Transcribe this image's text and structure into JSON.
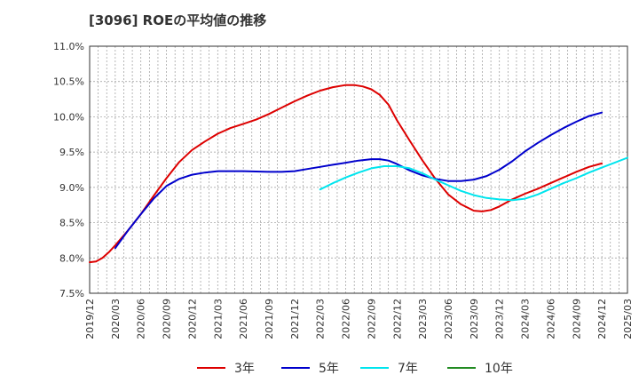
{
  "chart_data": {
    "type": "line",
    "title": "[3096]  ROEの平均値の推移",
    "xlabel": "",
    "ylabel": "",
    "ylim": [
      7.5,
      11.0
    ],
    "y_ticks": [
      "7.5%",
      "8.0%",
      "8.5%",
      "9.0%",
      "9.5%",
      "10.0%",
      "10.5%",
      "11.0%"
    ],
    "y_tick_values": [
      7.5,
      8.0,
      8.5,
      9.0,
      9.5,
      10.0,
      10.5,
      11.0
    ],
    "categories": [
      "2019/12",
      "2020/03",
      "2020/06",
      "2020/09",
      "2020/12",
      "2021/03",
      "2021/06",
      "2021/09",
      "2021/12",
      "2022/03",
      "2022/06",
      "2022/09",
      "2022/12",
      "2023/03",
      "2023/06",
      "2023/09",
      "2023/12",
      "2024/03",
      "2024/06",
      "2024/09",
      "2024/12",
      "2025/03"
    ],
    "grid": true,
    "legend_position": "bottom",
    "series": [
      {
        "name": "3年",
        "color": "#dd0000",
        "points": [
          [
            0,
            7.94
          ],
          [
            0.25,
            7.95
          ],
          [
            0.5,
            8.0
          ],
          [
            0.75,
            8.08
          ],
          [
            1,
            8.18
          ],
          [
            1.5,
            8.39
          ],
          [
            2,
            8.62
          ],
          [
            2.5,
            8.88
          ],
          [
            3,
            9.13
          ],
          [
            3.5,
            9.36
          ],
          [
            4,
            9.53
          ],
          [
            4.5,
            9.65
          ],
          [
            5,
            9.76
          ],
          [
            5.5,
            9.84
          ],
          [
            6,
            9.9
          ],
          [
            6.5,
            9.96
          ],
          [
            7,
            10.04
          ],
          [
            7.5,
            10.13
          ],
          [
            8,
            10.22
          ],
          [
            8.5,
            10.3
          ],
          [
            9,
            10.37
          ],
          [
            9.5,
            10.42
          ],
          [
            10,
            10.45
          ],
          [
            10.33,
            10.45
          ],
          [
            10.67,
            10.43
          ],
          [
            11,
            10.39
          ],
          [
            11.33,
            10.31
          ],
          [
            11.67,
            10.17
          ],
          [
            12,
            9.95
          ],
          [
            12.5,
            9.66
          ],
          [
            13,
            9.38
          ],
          [
            13.5,
            9.12
          ],
          [
            14,
            8.9
          ],
          [
            14.5,
            8.76
          ],
          [
            15,
            8.67
          ],
          [
            15.33,
            8.66
          ],
          [
            15.67,
            8.68
          ],
          [
            16,
            8.73
          ],
          [
            16.5,
            8.83
          ],
          [
            17,
            8.91
          ],
          [
            17.5,
            8.98
          ],
          [
            18,
            9.06
          ],
          [
            18.5,
            9.14
          ],
          [
            19,
            9.22
          ],
          [
            19.5,
            9.29
          ],
          [
            20,
            9.34
          ]
        ]
      },
      {
        "name": "5年",
        "color": "#0000cc",
        "points": [
          [
            1,
            8.14
          ],
          [
            1.5,
            8.39
          ],
          [
            2,
            8.62
          ],
          [
            2.5,
            8.84
          ],
          [
            3,
            9.02
          ],
          [
            3.5,
            9.12
          ],
          [
            4,
            9.18
          ],
          [
            4.5,
            9.21
          ],
          [
            5,
            9.23
          ],
          [
            6,
            9.23
          ],
          [
            7,
            9.22
          ],
          [
            7.5,
            9.22
          ],
          [
            8,
            9.23
          ],
          [
            8.5,
            9.26
          ],
          [
            9,
            9.29
          ],
          [
            9.5,
            9.32
          ],
          [
            10,
            9.35
          ],
          [
            10.5,
            9.38
          ],
          [
            11,
            9.4
          ],
          [
            11.33,
            9.4
          ],
          [
            11.67,
            9.38
          ],
          [
            12,
            9.33
          ],
          [
            12.5,
            9.24
          ],
          [
            13,
            9.17
          ],
          [
            13.5,
            9.12
          ],
          [
            14,
            9.09
          ],
          [
            14.5,
            9.09
          ],
          [
            15,
            9.11
          ],
          [
            15.5,
            9.16
          ],
          [
            16,
            9.25
          ],
          [
            16.5,
            9.37
          ],
          [
            17,
            9.51
          ],
          [
            17.5,
            9.63
          ],
          [
            18,
            9.74
          ],
          [
            18.5,
            9.84
          ],
          [
            19,
            9.93
          ],
          [
            19.5,
            10.01
          ],
          [
            20,
            10.06
          ]
        ]
      },
      {
        "name": "7年",
        "color": "#00e5ee",
        "points": [
          [
            9,
            8.97
          ],
          [
            9.5,
            9.06
          ],
          [
            10,
            9.14
          ],
          [
            10.5,
            9.21
          ],
          [
            11,
            9.27
          ],
          [
            11.5,
            9.3
          ],
          [
            12,
            9.3
          ],
          [
            12.5,
            9.27
          ],
          [
            13,
            9.2
          ],
          [
            13.5,
            9.11
          ],
          [
            14,
            9.03
          ],
          [
            14.5,
            8.95
          ],
          [
            15,
            8.89
          ],
          [
            15.5,
            8.85
          ],
          [
            16,
            8.83
          ],
          [
            16.5,
            8.82
          ],
          [
            17,
            8.84
          ],
          [
            17.5,
            8.9
          ],
          [
            18,
            8.98
          ],
          [
            18.5,
            9.06
          ],
          [
            19,
            9.13
          ],
          [
            19.5,
            9.21
          ],
          [
            20,
            9.28
          ],
          [
            20.5,
            9.35
          ],
          [
            21,
            9.42
          ]
        ]
      },
      {
        "name": "10年",
        "color": "#228b22",
        "points": []
      }
    ]
  }
}
